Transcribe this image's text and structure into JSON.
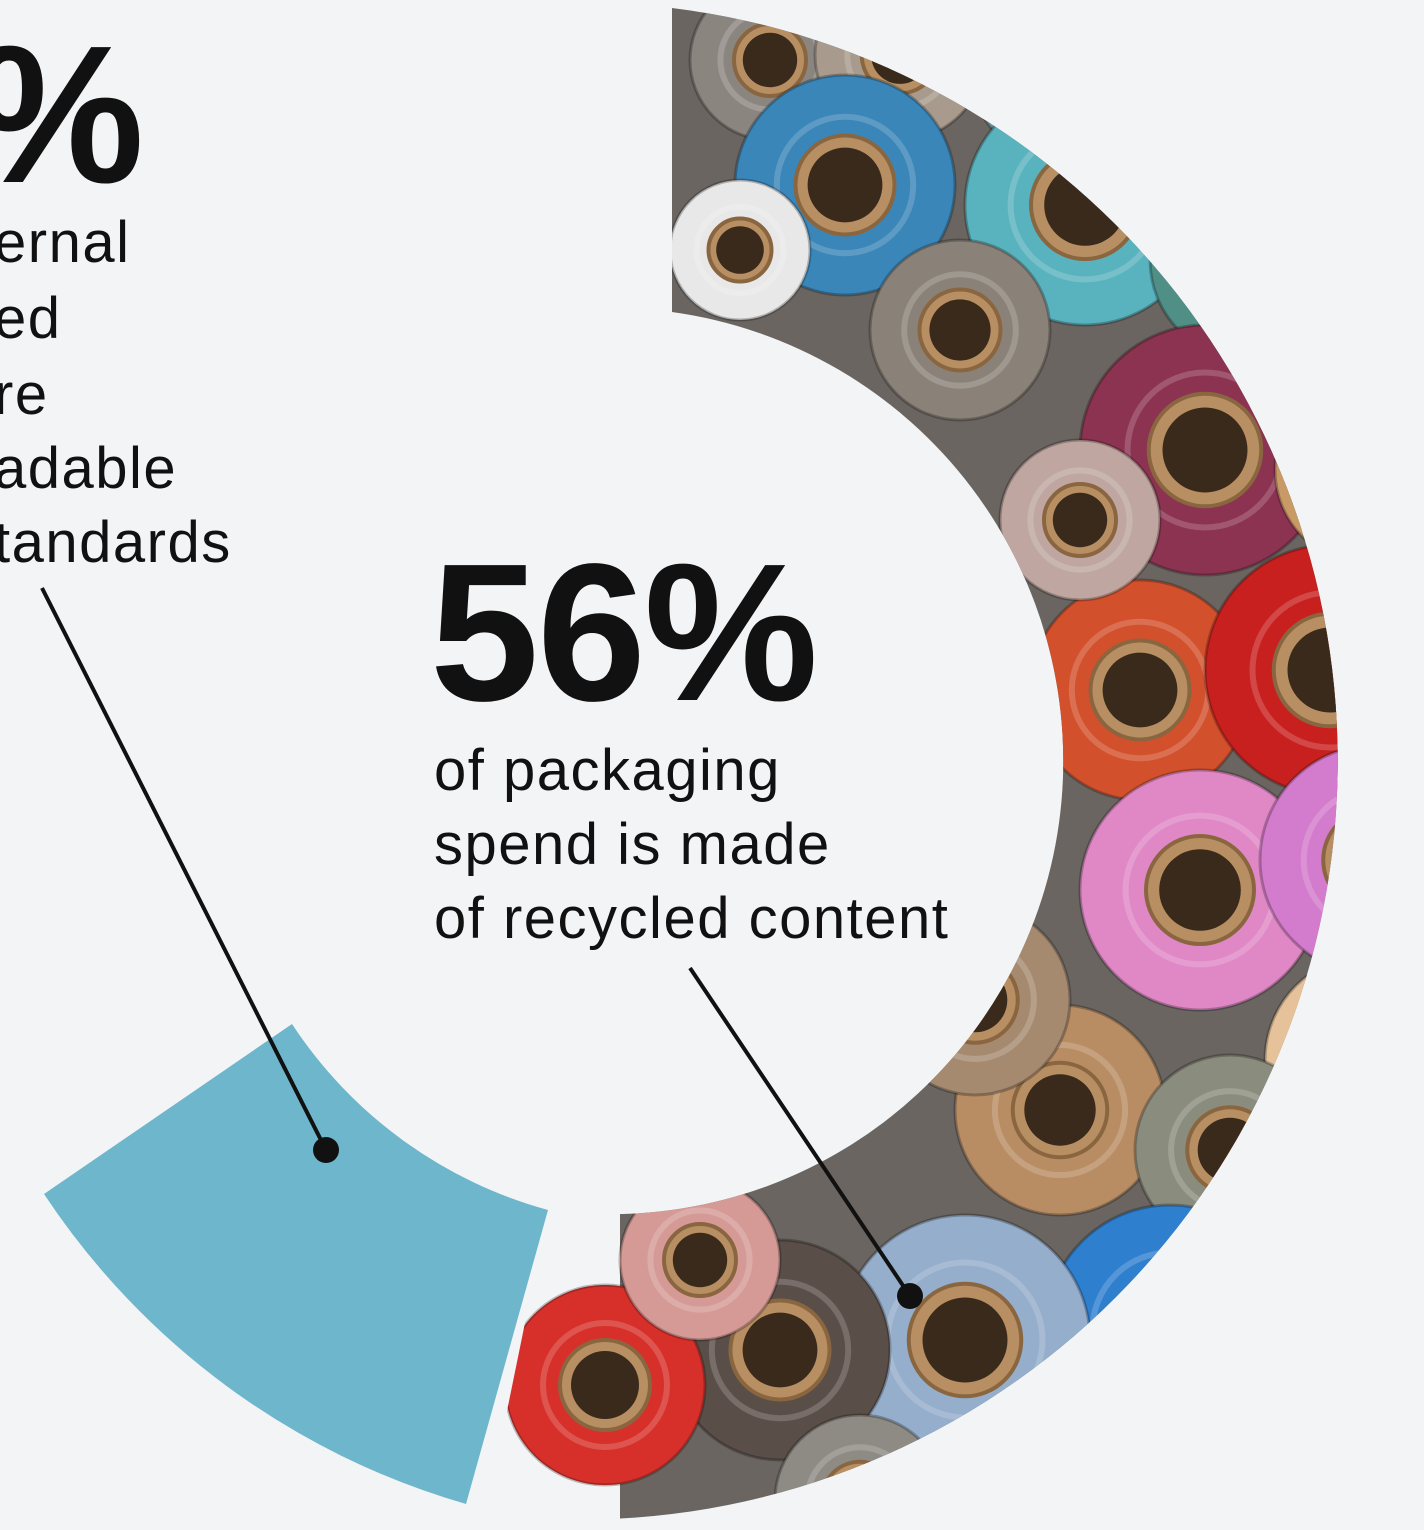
{
  "chart_data": {
    "type": "pie",
    "variant": "donut",
    "slices": [
      {
        "value_label": "56%",
        "caption_lines": [
          "of packaging",
          "spend is made",
          "of recycled content"
        ],
        "fill": "recycled-rolls-photo"
      },
      {
        "value_label": "%",
        "caption_lines": [
          "ernal",
          "ed",
          "re",
          "adable",
          "tandards"
        ],
        "fill": "#6db6cc"
      }
    ],
    "colors": {
      "background": "#f3f4f6",
      "accent": "#6db6cc",
      "text": "#111111"
    },
    "legend": "none",
    "grid": false
  }
}
